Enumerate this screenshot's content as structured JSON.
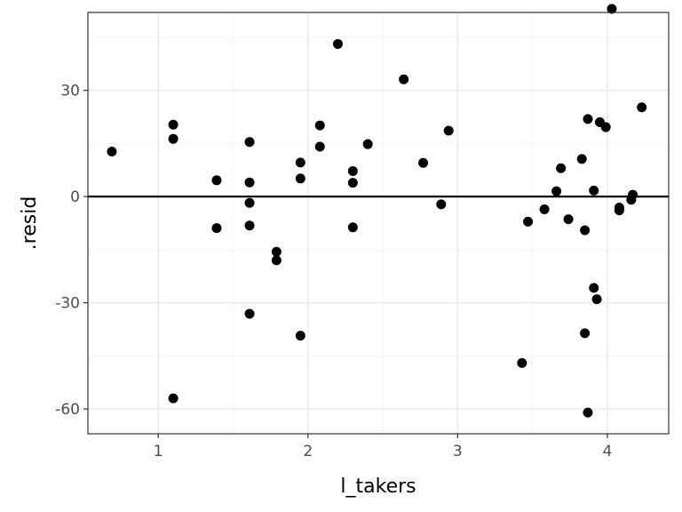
{
  "chart_data": {
    "type": "scatter",
    "title": "",
    "xlabel": "l_takers",
    "ylabel": ".resid",
    "xlim": [
      0.53,
      4.41
    ],
    "ylim": [
      -67,
      52
    ],
    "x_ticks": [
      1,
      2,
      3,
      4
    ],
    "x_tick_labels": [
      "1",
      "2",
      "3",
      "4"
    ],
    "y_ticks": [
      -60,
      -30,
      0,
      30
    ],
    "y_tick_labels": [
      "-60",
      "-30",
      "0",
      "30"
    ],
    "grid": true,
    "hline": 0,
    "colors": {
      "point": "#000000",
      "grid_major": "#ebebeb",
      "grid_minor": "#f5f5f5",
      "panel_border": "#333333",
      "hline": "#000000"
    },
    "points": [
      {
        "x": 0.69,
        "y": 12.7
      },
      {
        "x": 1.1,
        "y": 20.3
      },
      {
        "x": 1.1,
        "y": 16.3
      },
      {
        "x": 1.1,
        "y": -57.0
      },
      {
        "x": 1.39,
        "y": 4.6
      },
      {
        "x": 1.39,
        "y": -8.9
      },
      {
        "x": 1.61,
        "y": 15.4
      },
      {
        "x": 1.61,
        "y": 4.0
      },
      {
        "x": 1.61,
        "y": -1.8
      },
      {
        "x": 1.61,
        "y": -8.2
      },
      {
        "x": 1.61,
        "y": -33.1
      },
      {
        "x": 1.79,
        "y": -15.6
      },
      {
        "x": 1.79,
        "y": -18.0
      },
      {
        "x": 1.95,
        "y": 9.6
      },
      {
        "x": 1.95,
        "y": 5.1
      },
      {
        "x": 1.95,
        "y": -39.3
      },
      {
        "x": 2.08,
        "y": 20.1
      },
      {
        "x": 2.08,
        "y": 14.1
      },
      {
        "x": 2.2,
        "y": 43.1
      },
      {
        "x": 2.3,
        "y": 7.2
      },
      {
        "x": 2.3,
        "y": 3.9
      },
      {
        "x": 2.3,
        "y": -8.7
      },
      {
        "x": 2.4,
        "y": 14.8
      },
      {
        "x": 2.64,
        "y": 33.1
      },
      {
        "x": 2.77,
        "y": 9.5
      },
      {
        "x": 2.89,
        "y": -2.2
      },
      {
        "x": 2.94,
        "y": 18.6
      },
      {
        "x": 3.43,
        "y": -47.0
      },
      {
        "x": 3.47,
        "y": -7.1
      },
      {
        "x": 3.58,
        "y": -3.6
      },
      {
        "x": 3.66,
        "y": 1.5
      },
      {
        "x": 3.69,
        "y": 8.0
      },
      {
        "x": 3.74,
        "y": -6.4
      },
      {
        "x": 3.83,
        "y": 10.6
      },
      {
        "x": 3.85,
        "y": -9.5
      },
      {
        "x": 3.85,
        "y": -38.6
      },
      {
        "x": 3.87,
        "y": 21.9
      },
      {
        "x": 3.87,
        "y": -61.0
      },
      {
        "x": 3.91,
        "y": 1.7
      },
      {
        "x": 3.91,
        "y": -25.8
      },
      {
        "x": 3.93,
        "y": -29.0
      },
      {
        "x": 3.95,
        "y": 21.0
      },
      {
        "x": 3.99,
        "y": 19.6
      },
      {
        "x": 4.03,
        "y": 53.0
      },
      {
        "x": 4.08,
        "y": -3.1
      },
      {
        "x": 4.08,
        "y": -3.9
      },
      {
        "x": 4.16,
        "y": -0.9
      },
      {
        "x": 4.17,
        "y": 0.5
      },
      {
        "x": 4.23,
        "y": 25.2
      }
    ]
  }
}
